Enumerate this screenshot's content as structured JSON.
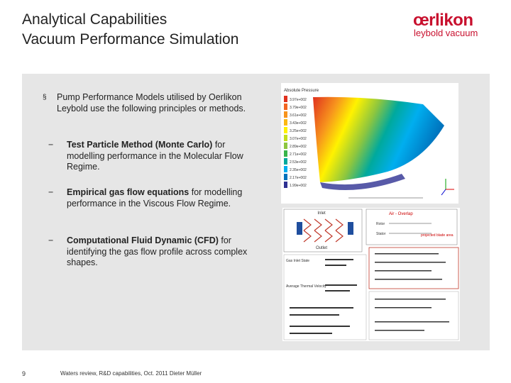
{
  "slide": {
    "title_line1": "Analytical Capabilities",
    "title_line2": "Vacuum Performance Simulation"
  },
  "logo": {
    "brand": "œrlikon",
    "sub": "leybold vacuum"
  },
  "content": {
    "bullet_mark": "§",
    "bullet_text": "Pump Performance Models utilised by Oerlikon Leybold use the following principles or methods.",
    "dash": "−",
    "items": [
      {
        "bold": "Test Particle Method (Monte Carlo)",
        "rest": " for modelling performance in the Molecular Flow Regime."
      },
      {
        "bold": "Empirical gas flow equations",
        "rest": " for modelling performance in the Viscous Flow Regime."
      },
      {
        "bold": "Computational Fluid Dynamic (CFD)",
        "rest": " for identifying the gas flow profile across complex shapes."
      }
    ]
  },
  "figure_top": {
    "legend_title": "Absolute Pressure",
    "legend_values": [
      "3.97e+002",
      "3.79e+002",
      "3.61e+002",
      "3.43e+002",
      "3.25e+002",
      "3.07e+002",
      "2.89e+002",
      "2.71e+002",
      "2.53e+002",
      "2.35e+002",
      "2.17e+002",
      "1.99e+002"
    ],
    "colors": [
      "#e0301e",
      "#f26522",
      "#f7941d",
      "#fcb913",
      "#fff200",
      "#c4df1b",
      "#8dc63f",
      "#39b54a",
      "#00a99d",
      "#00aeef",
      "#0072bc",
      "#2e3192"
    ]
  },
  "figure_bottom": {
    "label_inlet": "Inlet",
    "label_outlet": "Outlet",
    "label_gas": "Gas Inlet State",
    "label_avg": "Average Thermal Velocity",
    "label_anglo": "Air - Overlap",
    "label_rotor": "Rotor",
    "label_stator": "Stator",
    "label_proj": "projected blade area"
  },
  "footer": {
    "page": "9",
    "text": "Waters review, R&D capabilities, Oct. 2011  Dieter Müller"
  }
}
